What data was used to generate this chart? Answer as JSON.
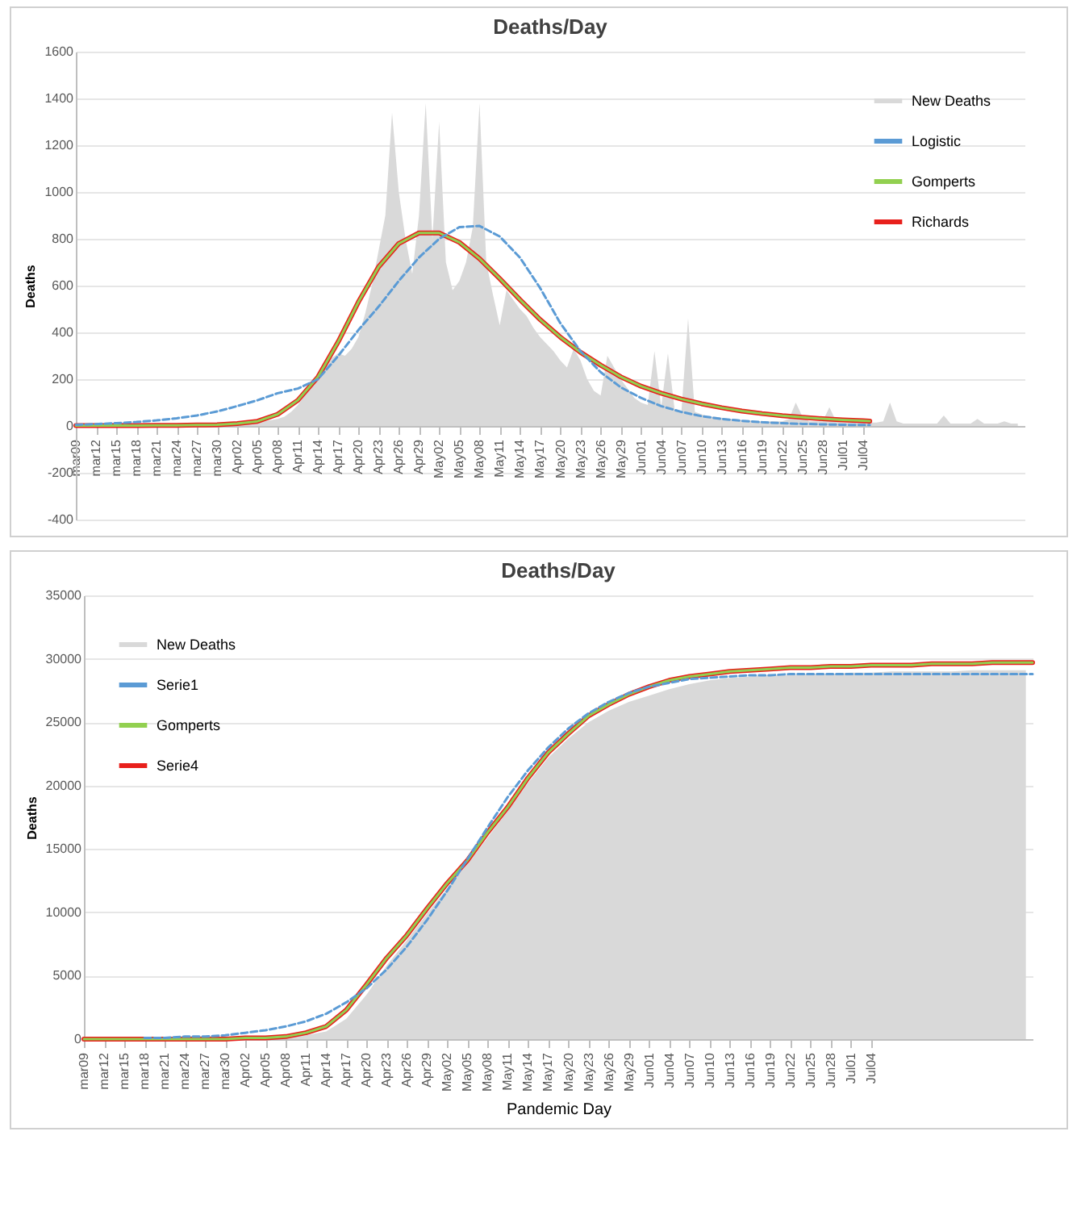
{
  "chart_data": [
    {
      "type": "line",
      "title": "Deaths/Day",
      "ylabel": "Deaths",
      "ylim": [
        -400,
        1600
      ],
      "yticks": [
        -400,
        -200,
        0,
        200,
        400,
        600,
        800,
        1000,
        1200,
        1400,
        1600
      ],
      "xlim": [
        "--03-09",
        "--07-28"
      ],
      "xticks": [
        {
          "value": "--03-09",
          "label": "mar09"
        },
        {
          "value": "--03-12",
          "label": "mar12"
        },
        {
          "value": "--03-15",
          "label": "mar15"
        },
        {
          "value": "--03-18",
          "label": "mar18"
        },
        {
          "value": "--03-21",
          "label": "mar21"
        },
        {
          "value": "--03-24",
          "label": "mar24"
        },
        {
          "value": "--03-27",
          "label": "mar27"
        },
        {
          "value": "--03-30",
          "label": "mar30"
        },
        {
          "value": "--04-02",
          "label": "Apr02"
        },
        {
          "value": "--04-05",
          "label": "Apr05"
        },
        {
          "value": "--04-08",
          "label": "Apr08"
        },
        {
          "value": "--04-11",
          "label": "Apr11"
        },
        {
          "value": "--04-14",
          "label": "Apr14"
        },
        {
          "value": "--04-17",
          "label": "Apr17"
        },
        {
          "value": "--04-20",
          "label": "Apr20"
        },
        {
          "value": "--04-23",
          "label": "Apr23"
        },
        {
          "value": "--04-26",
          "label": "Apr26"
        },
        {
          "value": "--04-29",
          "label": "Apr29"
        },
        {
          "value": "--05-02",
          "label": "May02"
        },
        {
          "value": "--05-05",
          "label": "May05"
        },
        {
          "value": "--05-08",
          "label": "May08"
        },
        {
          "value": "--05-11",
          "label": "May11"
        },
        {
          "value": "--05-14",
          "label": "May14"
        },
        {
          "value": "--05-17",
          "label": "May17"
        },
        {
          "value": "--05-20",
          "label": "May20"
        },
        {
          "value": "--05-23",
          "label": "May23"
        },
        {
          "value": "--05-26",
          "label": "May26"
        },
        {
          "value": "--05-29",
          "label": "May29"
        },
        {
          "value": "--06-01",
          "label": "Jun01"
        },
        {
          "value": "--06-04",
          "label": "Jun04"
        },
        {
          "value": "--06-07",
          "label": "Jun07"
        },
        {
          "value": "--06-10",
          "label": "Jun10"
        },
        {
          "value": "--06-13",
          "label": "Jun13"
        },
        {
          "value": "--06-16",
          "label": "Jun16"
        },
        {
          "value": "--06-19",
          "label": "Jun19"
        },
        {
          "value": "--06-22",
          "label": "Jun22"
        },
        {
          "value": "--06-25",
          "label": "Jun25"
        },
        {
          "value": "--06-28",
          "label": "Jun28"
        },
        {
          "value": "--07-01",
          "label": "Jul01"
        },
        {
          "value": "--07-04",
          "label": "Jul04"
        }
      ],
      "grid": "y",
      "legend": "top right",
      "series": [
        {
          "name": "New Deaths",
          "type": "area",
          "color": "#d9d9d9",
          "x": [
            "--03-09",
            "--03-10",
            "--03-11",
            "--03-12",
            "--03-13",
            "--03-14",
            "--03-15",
            "--03-16",
            "--03-17",
            "--03-18",
            "--03-19",
            "--03-20",
            "--03-21",
            "--03-22",
            "--03-23",
            "--03-24",
            "--03-25",
            "--03-26",
            "--03-27",
            "--03-28",
            "--03-29",
            "--03-30",
            "--03-31",
            "--04-01",
            "--04-02",
            "--04-03",
            "--04-04",
            "--04-05",
            "--04-06",
            "--04-07",
            "--04-08",
            "--04-09",
            "--04-10",
            "--04-11",
            "--04-12",
            "--04-13",
            "--04-14",
            "--04-15",
            "--04-16",
            "--04-17",
            "--04-18",
            "--04-19",
            "--04-20",
            "--04-21",
            "--04-22",
            "--04-23",
            "--04-24",
            "--04-25",
            "--04-26",
            "--04-27",
            "--04-28",
            "--04-29",
            "--04-30",
            "--05-01",
            "--05-02",
            "--05-03",
            "--05-04",
            "--05-05",
            "--05-06",
            "--05-07",
            "--05-08",
            "--05-09",
            "--05-10",
            "--05-11",
            "--05-12",
            "--05-13",
            "--05-14",
            "--05-15",
            "--05-16",
            "--05-17",
            "--05-18",
            "--05-19",
            "--05-20",
            "--05-21",
            "--05-22",
            "--05-23",
            "--05-24",
            "--05-25",
            "--05-26",
            "--05-27",
            "--05-28",
            "--05-29",
            "--05-30",
            "--05-31",
            "--06-01",
            "--06-02",
            "--06-03",
            "--06-04",
            "--06-05",
            "--06-06",
            "--06-07",
            "--06-08",
            "--06-09",
            "--06-10",
            "--06-11",
            "--06-12",
            "--06-13",
            "--06-14",
            "--06-15",
            "--06-16",
            "--06-17",
            "--06-18",
            "--06-19",
            "--06-20",
            "--06-21",
            "--06-22",
            "--06-23",
            "--06-24",
            "--06-25",
            "--06-26",
            "--06-27",
            "--06-28",
            "--06-29",
            "--06-30",
            "--07-01",
            "--07-02",
            "--07-03",
            "--07-04",
            "--07-05",
            "--07-06",
            "--07-07",
            "--07-08",
            "--07-09",
            "--07-10",
            "--07-11",
            "--07-12",
            "--07-13",
            "--07-14",
            "--07-15",
            "--07-16",
            "--07-17",
            "--07-18",
            "--07-19",
            "--07-20",
            "--07-21",
            "--07-22",
            "--07-23",
            "--07-24",
            "--07-25",
            "--07-26",
            "--07-27"
          ],
          "values": [
            0,
            0,
            0,
            0,
            0,
            0,
            0,
            0,
            0,
            0,
            0,
            0,
            5,
            5,
            5,
            5,
            5,
            10,
            10,
            10,
            10,
            10,
            10,
            10,
            10,
            15,
            15,
            20,
            20,
            25,
            30,
            40,
            60,
            90,
            130,
            170,
            210,
            250,
            290,
            310,
            300,
            330,
            380,
            480,
            600,
            750,
            900,
            1340,
            1000,
            800,
            650,
            900,
            1380,
            800,
            1300,
            700,
            580,
            620,
            700,
            850,
            1380,
            700,
            560,
            430,
            580,
            540,
            500,
            470,
            420,
            380,
            350,
            320,
            280,
            250,
            330,
            280,
            200,
            150,
            130,
            300,
            250,
            200,
            160,
            120,
            100,
            90,
            320,
            80,
            310,
            70,
            60,
            460,
            60,
            50,
            40,
            40,
            35,
            30,
            30,
            25,
            25,
            20,
            20,
            20,
            20,
            20,
            30,
            100,
            40,
            20,
            20,
            20,
            80,
            20,
            15,
            15,
            15,
            15,
            15,
            15,
            20,
            100,
            20,
            10,
            10,
            10,
            10,
            10,
            10,
            45,
            10,
            10,
            10,
            10,
            30,
            10,
            10,
            10,
            20,
            10,
            10
          ]
        },
        {
          "name": "Logistic",
          "type": "line",
          "color": "#5b9bd5",
          "line_style": "dashed",
          "x": [
            "--03-09",
            "--03-12",
            "--03-15",
            "--03-18",
            "--03-21",
            "--03-24",
            "--03-27",
            "--03-30",
            "--04-02",
            "--04-05",
            "--04-08",
            "--04-11",
            "--04-14",
            "--04-17",
            "--04-20",
            "--04-23",
            "--04-26",
            "--04-29",
            "--05-02",
            "--05-05",
            "--05-08",
            "--05-11",
            "--05-14",
            "--05-17",
            "--05-20",
            "--05-23",
            "--05-26",
            "--05-29",
            "--06-01",
            "--06-04",
            "--06-07",
            "--06-10",
            "--06-13",
            "--06-16",
            "--06-19",
            "--06-22",
            "--06-25",
            "--06-28",
            "--07-01",
            "--07-04",
            "--07-05"
          ],
          "values": [
            5,
            8,
            12,
            17,
            24,
            33,
            45,
            62,
            85,
            110,
            140,
            160,
            200,
            300,
            410,
            510,
            620,
            720,
            800,
            850,
            855,
            810,
            720,
            590,
            440,
            320,
            230,
            165,
            120,
            85,
            60,
            42,
            30,
            22,
            16,
            12,
            9,
            7,
            5,
            4,
            4
          ]
        },
        {
          "name": "Gomperts",
          "type": "line",
          "color": "#92d050",
          "line_style": "solid",
          "x": [
            "--03-09",
            "--03-12",
            "--03-15",
            "--03-18",
            "--03-21",
            "--03-24",
            "--03-27",
            "--03-30",
            "--04-02",
            "--04-05",
            "--04-08",
            "--04-11",
            "--04-14",
            "--04-17",
            "--04-20",
            "--04-23",
            "--04-26",
            "--04-29",
            "--05-02",
            "--05-05",
            "--05-08",
            "--05-11",
            "--05-14",
            "--05-17",
            "--05-20",
            "--05-23",
            "--05-26",
            "--05-29",
            "--06-01",
            "--06-04",
            "--06-07",
            "--06-10",
            "--06-13",
            "--06-16",
            "--06-19",
            "--06-22",
            "--06-25",
            "--06-28",
            "--07-01",
            "--07-04",
            "--07-05"
          ],
          "values": [
            2,
            2,
            2,
            2,
            3,
            3,
            4,
            5,
            10,
            20,
            50,
            110,
            210,
            360,
            530,
            680,
            780,
            825,
            825,
            785,
            715,
            630,
            540,
            455,
            380,
            315,
            260,
            210,
            170,
            140,
            115,
            95,
            78,
            64,
            53,
            44,
            37,
            31,
            26,
            22,
            21
          ]
        },
        {
          "name": "Richards",
          "type": "line",
          "color": "#e8201c",
          "line_style": "solid",
          "x": [
            "--03-09",
            "--03-12",
            "--03-15",
            "--03-18",
            "--03-21",
            "--03-24",
            "--03-27",
            "--03-30",
            "--04-02",
            "--04-05",
            "--04-08",
            "--04-11",
            "--04-14",
            "--04-17",
            "--04-20",
            "--04-23",
            "--04-26",
            "--04-29",
            "--05-02",
            "--05-05",
            "--05-08",
            "--05-11",
            "--05-14",
            "--05-17",
            "--05-20",
            "--05-23",
            "--05-26",
            "--05-29",
            "--06-01",
            "--06-04",
            "--06-07",
            "--06-10",
            "--06-13",
            "--06-16",
            "--06-19",
            "--06-22",
            "--06-25",
            "--06-28",
            "--07-01",
            "--07-04",
            "--07-05"
          ],
          "values": [
            2,
            2,
            2,
            2,
            3,
            3,
            4,
            5,
            10,
            20,
            50,
            110,
            210,
            360,
            530,
            680,
            780,
            825,
            825,
            785,
            715,
            630,
            540,
            455,
            380,
            315,
            260,
            210,
            170,
            140,
            115,
            95,
            78,
            64,
            53,
            44,
            37,
            31,
            26,
            22,
            21
          ]
        }
      ]
    },
    {
      "type": "line",
      "title": "Deaths/Day",
      "ylabel": "Deaths",
      "xlabel": "Pandemic Day",
      "ylim": [
        0,
        35000
      ],
      "yticks": [
        0,
        5000,
        10000,
        15000,
        20000,
        25000,
        30000,
        35000
      ],
      "xlim": [
        "--03-09",
        "--07-28"
      ],
      "xticks": [
        {
          "value": "--03-09",
          "label": "mar09"
        },
        {
          "value": "--03-12",
          "label": "mar12"
        },
        {
          "value": "--03-15",
          "label": "mar15"
        },
        {
          "value": "--03-18",
          "label": "mar18"
        },
        {
          "value": "--03-21",
          "label": "mar21"
        },
        {
          "value": "--03-24",
          "label": "mar24"
        },
        {
          "value": "--03-27",
          "label": "mar27"
        },
        {
          "value": "--03-30",
          "label": "mar30"
        },
        {
          "value": "--04-02",
          "label": "Apr02"
        },
        {
          "value": "--04-05",
          "label": "Apr05"
        },
        {
          "value": "--04-08",
          "label": "Apr08"
        },
        {
          "value": "--04-11",
          "label": "Apr11"
        },
        {
          "value": "--04-14",
          "label": "Apr14"
        },
        {
          "value": "--04-17",
          "label": "Apr17"
        },
        {
          "value": "--04-20",
          "label": "Apr20"
        },
        {
          "value": "--04-23",
          "label": "Apr23"
        },
        {
          "value": "--04-26",
          "label": "Apr26"
        },
        {
          "value": "--04-29",
          "label": "Apr29"
        },
        {
          "value": "--05-02",
          "label": "May02"
        },
        {
          "value": "--05-05",
          "label": "May05"
        },
        {
          "value": "--05-08",
          "label": "May08"
        },
        {
          "value": "--05-11",
          "label": "May11"
        },
        {
          "value": "--05-14",
          "label": "May14"
        },
        {
          "value": "--05-17",
          "label": "May17"
        },
        {
          "value": "--05-20",
          "label": "May20"
        },
        {
          "value": "--05-23",
          "label": "May23"
        },
        {
          "value": "--05-26",
          "label": "May26"
        },
        {
          "value": "--05-29",
          "label": "May29"
        },
        {
          "value": "--06-01",
          "label": "Jun01"
        },
        {
          "value": "--06-04",
          "label": "Jun04"
        },
        {
          "value": "--06-07",
          "label": "Jun07"
        },
        {
          "value": "--06-10",
          "label": "Jun10"
        },
        {
          "value": "--06-13",
          "label": "Jun13"
        },
        {
          "value": "--06-16",
          "label": "Jun16"
        },
        {
          "value": "--06-19",
          "label": "Jun19"
        },
        {
          "value": "--06-22",
          "label": "Jun22"
        },
        {
          "value": "--06-25",
          "label": "Jun25"
        },
        {
          "value": "--06-28",
          "label": "Jun28"
        },
        {
          "value": "--07-01",
          "label": "Jul01"
        },
        {
          "value": "--07-04",
          "label": "Jul04"
        }
      ],
      "grid": "y",
      "legend": "top left",
      "series": [
        {
          "name": "New Deaths",
          "type": "area",
          "color": "#d9d9d9",
          "x": [
            "--03-09",
            "--03-12",
            "--03-15",
            "--03-18",
            "--03-21",
            "--03-24",
            "--03-27",
            "--03-30",
            "--04-02",
            "--04-05",
            "--04-08",
            "--04-11",
            "--04-14",
            "--04-17",
            "--04-20",
            "--04-23",
            "--04-26",
            "--04-29",
            "--05-02",
            "--05-05",
            "--05-08",
            "--05-11",
            "--05-14",
            "--05-17",
            "--05-20",
            "--05-23",
            "--05-26",
            "--05-29",
            "--06-01",
            "--06-04",
            "--06-07",
            "--06-10",
            "--06-13",
            "--06-16",
            "--06-19",
            "--06-22",
            "--06-25",
            "--06-28",
            "--07-01",
            "--07-04",
            "--07-07",
            "--07-10",
            "--07-13",
            "--07-16",
            "--07-19",
            "--07-22",
            "--07-25",
            "--07-27"
          ],
          "values": [
            0,
            0,
            0,
            0,
            0,
            0,
            0,
            0,
            0,
            0,
            100,
            300,
            600,
            1600,
            3500,
            5800,
            7800,
            9900,
            11900,
            13800,
            15900,
            18000,
            20200,
            22200,
            23700,
            25000,
            25900,
            26600,
            27100,
            27600,
            28000,
            28300,
            28500,
            28600,
            28700,
            28700,
            28800,
            28800,
            28900,
            28900,
            29000,
            29000,
            29000,
            29000,
            29100,
            29100,
            29100,
            29100
          ]
        },
        {
          "name": "Serie1",
          "type": "line",
          "color": "#5b9bd5",
          "line_style": "dashed",
          "x": [
            "--03-18",
            "--03-21",
            "--03-24",
            "--03-27",
            "--03-30",
            "--04-02",
            "--04-05",
            "--04-08",
            "--04-11",
            "--04-14",
            "--04-17",
            "--04-20",
            "--04-23",
            "--04-26",
            "--04-29",
            "--05-02",
            "--05-05",
            "--05-08",
            "--05-11",
            "--05-14",
            "--05-17",
            "--05-20",
            "--05-23",
            "--05-26",
            "--05-29",
            "--06-01",
            "--06-04",
            "--06-07",
            "--06-10",
            "--06-13",
            "--06-16",
            "--06-19",
            "--06-22",
            "--06-25",
            "--06-28",
            "--07-01",
            "--07-04",
            "--07-07",
            "--07-10",
            "--07-13",
            "--07-16",
            "--07-19",
            "--07-22",
            "--07-25",
            "--07-28"
          ],
          "values": [
            100,
            100,
            200,
            200,
            300,
            500,
            700,
            1000,
            1400,
            2000,
            2900,
            4000,
            5500,
            7300,
            9400,
            11700,
            14200,
            16700,
            19100,
            21200,
            23000,
            24500,
            25700,
            26600,
            27300,
            27800,
            28100,
            28400,
            28500,
            28600,
            28700,
            28700,
            28800,
            28800,
            28800,
            28800,
            28800,
            28800,
            28800,
            28800,
            28800,
            28800,
            28800,
            28800,
            28800
          ]
        },
        {
          "name": "Gomperts",
          "type": "line",
          "color": "#92d050",
          "line_style": "solid",
          "x": [
            "--03-09",
            "--03-12",
            "--03-15",
            "--03-18",
            "--03-21",
            "--03-24",
            "--03-27",
            "--03-30",
            "--04-02",
            "--04-05",
            "--04-08",
            "--04-11",
            "--04-14",
            "--04-17",
            "--04-20",
            "--04-23",
            "--04-26",
            "--04-29",
            "--05-02",
            "--05-05",
            "--05-08",
            "--05-11",
            "--05-14",
            "--05-17",
            "--05-20",
            "--05-23",
            "--05-26",
            "--05-29",
            "--06-01",
            "--06-04",
            "--06-07",
            "--06-10",
            "--06-13",
            "--06-16",
            "--06-19",
            "--06-22",
            "--06-25",
            "--06-28",
            "--07-01",
            "--07-04",
            "--07-07",
            "--07-10",
            "--07-13",
            "--07-16",
            "--07-19",
            "--07-22",
            "--07-25",
            "--07-28"
          ],
          "values": [
            0,
            0,
            0,
            0,
            0,
            0,
            0,
            0,
            100,
            100,
            200,
            500,
            1000,
            2300,
            4300,
            6400,
            8200,
            10300,
            12300,
            14100,
            16300,
            18300,
            20600,
            22600,
            24100,
            25500,
            26400,
            27200,
            27800,
            28300,
            28600,
            28800,
            29000,
            29100,
            29200,
            29300,
            29300,
            29400,
            29400,
            29500,
            29500,
            29500,
            29600,
            29600,
            29600,
            29700,
            29700,
            29700
          ]
        },
        {
          "name": "Serie4",
          "type": "line",
          "color": "#e8201c",
          "line_style": "solid",
          "x": [
            "--03-09",
            "--03-12",
            "--03-15",
            "--03-18",
            "--03-21",
            "--03-24",
            "--03-27",
            "--03-30",
            "--04-02",
            "--04-05",
            "--04-08",
            "--04-11",
            "--04-14",
            "--04-17",
            "--04-20",
            "--04-23",
            "--04-26",
            "--04-29",
            "--05-02",
            "--05-05",
            "--05-08",
            "--05-11",
            "--05-14",
            "--05-17",
            "--05-20",
            "--05-23",
            "--05-26",
            "--05-29",
            "--06-01",
            "--06-04",
            "--06-07",
            "--06-10",
            "--06-13",
            "--06-16",
            "--06-19",
            "--06-22",
            "--06-25",
            "--06-28",
            "--07-01",
            "--07-04",
            "--07-07",
            "--07-10",
            "--07-13",
            "--07-16",
            "--07-19",
            "--07-22",
            "--07-25",
            "--07-28"
          ],
          "values": [
            0,
            0,
            0,
            0,
            0,
            0,
            0,
            0,
            100,
            100,
            200,
            500,
            1000,
            2300,
            4300,
            6400,
            8200,
            10300,
            12300,
            14100,
            16300,
            18300,
            20600,
            22600,
            24100,
            25500,
            26400,
            27200,
            27800,
            28300,
            28600,
            28800,
            29000,
            29100,
            29200,
            29300,
            29300,
            29400,
            29400,
            29500,
            29500,
            29500,
            29600,
            29600,
            29600,
            29700,
            29700,
            29700
          ]
        }
      ]
    }
  ]
}
